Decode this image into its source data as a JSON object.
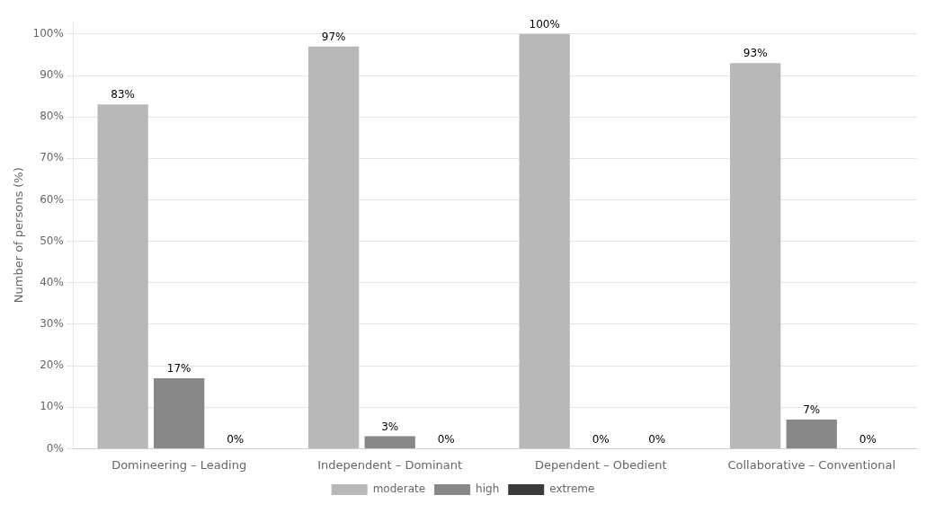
{
  "chart_data": {
    "type": "bar",
    "categories": [
      "Domineering – Leading",
      "Independent – Dominant",
      "Dependent – Obedient",
      "Collaborative – Conventional"
    ],
    "series": [
      {
        "name": "moderate",
        "color": "#b8b8b8",
        "values": [
          83,
          97,
          100,
          93
        ],
        "value_labels": [
          "83%",
          "97%",
          "100%",
          "93%"
        ]
      },
      {
        "name": "high",
        "color": "#888888",
        "values": [
          17,
          3,
          0,
          7
        ],
        "value_labels": [
          "17%",
          "3%",
          "0%",
          "7%"
        ]
      },
      {
        "name": "extreme",
        "color": "#3a3a3a",
        "values": [
          0,
          0,
          0,
          0
        ],
        "value_labels": [
          "0%",
          "0%",
          "0%",
          "0%"
        ]
      }
    ],
    "ylabel": "Number of persons (%)",
    "ylim": [
      0,
      103
    ],
    "yticks": [
      {
        "value": 0,
        "label": "0%"
      },
      {
        "value": 10,
        "label": "10%"
      },
      {
        "value": 20,
        "label": "20%"
      },
      {
        "value": 30,
        "label": "30%"
      },
      {
        "value": 40,
        "label": "40%"
      },
      {
        "value": 50,
        "label": "50%"
      },
      {
        "value": 60,
        "label": "60%"
      },
      {
        "value": 70,
        "label": "70%"
      },
      {
        "value": 80,
        "label": "80%"
      },
      {
        "value": 90,
        "label": "90%"
      },
      {
        "value": 100,
        "label": "100%"
      }
    ],
    "grid": true,
    "legend": "bottom",
    "data_labels": true
  }
}
